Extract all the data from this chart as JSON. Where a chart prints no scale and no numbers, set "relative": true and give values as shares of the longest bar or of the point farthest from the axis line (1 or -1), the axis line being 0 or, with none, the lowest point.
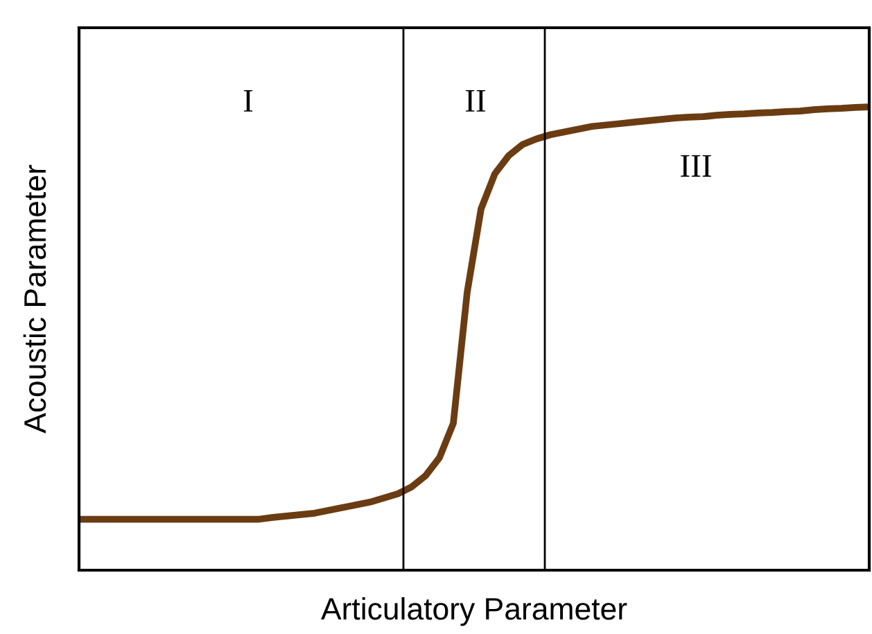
{
  "chart_data": {
    "type": "line",
    "relative": true,
    "xlabel": "Articulatory Parameter",
    "ylabel": "Acoustic Parameter",
    "categories": [
      null,
      null,
      null,
      null,
      null,
      null,
      null,
      null,
      null,
      null,
      null,
      null,
      null,
      null,
      null,
      null,
      null,
      null,
      null,
      null,
      null,
      null,
      null,
      null,
      null,
      null,
      null,
      null,
      null,
      null,
      null,
      null,
      null,
      null,
      null,
      null,
      null,
      null,
      null,
      null,
      null,
      null,
      null,
      null,
      null,
      null,
      null,
      null,
      null,
      null,
      null,
      null,
      null,
      null,
      null,
      null,
      null,
      null
    ],
    "series": [
      {
        "color": "#6b3c12",
        "values": [
          0.11,
          0.11,
          0.11,
          0.11,
          0.11,
          0.11,
          0.11,
          0.11,
          0.11,
          0.11,
          0.11,
          0.11,
          0.11,
          0.11,
          0.114,
          0.117,
          0.12,
          0.123,
          0.129,
          0.135,
          0.141,
          0.147,
          0.156,
          0.165,
          0.18,
          0.204,
          0.243,
          0.317,
          0.6,
          0.78,
          0.856,
          0.895,
          0.919,
          0.931,
          0.94,
          0.946,
          0.952,
          0.958,
          0.961,
          0.964,
          0.967,
          0.97,
          0.973,
          0.976,
          0.978,
          0.979,
          0.982,
          0.984,
          0.985,
          0.987,
          0.988,
          0.99,
          0.991,
          0.994,
          0.996,
          0.997,
          0.999,
          1
        ]
      }
    ],
    "annotations": [
      "I",
      "II",
      "III"
    ],
    "marker": "none",
    "line_style": "solid"
  }
}
